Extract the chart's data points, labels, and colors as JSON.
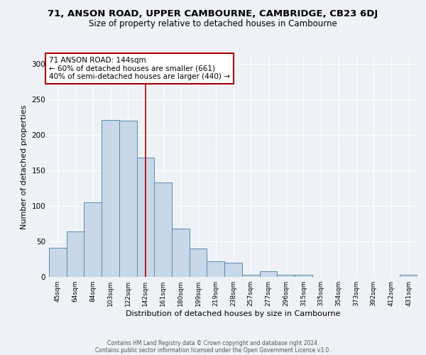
{
  "title1": "71, ANSON ROAD, UPPER CAMBOURNE, CAMBRIDGE, CB23 6DJ",
  "title2": "Size of property relative to detached houses in Cambourne",
  "xlabel": "Distribution of detached houses by size in Cambourne",
  "ylabel": "Number of detached properties",
  "categories": [
    "45sqm",
    "64sqm",
    "84sqm",
    "103sqm",
    "122sqm",
    "142sqm",
    "161sqm",
    "180sqm",
    "199sqm",
    "219sqm",
    "238sqm",
    "257sqm",
    "277sqm",
    "296sqm",
    "315sqm",
    "335sqm",
    "354sqm",
    "373sqm",
    "392sqm",
    "412sqm",
    "431sqm"
  ],
  "values": [
    41,
    64,
    105,
    221,
    220,
    168,
    133,
    68,
    40,
    22,
    20,
    3,
    8,
    3,
    3,
    0,
    0,
    0,
    0,
    0,
    3
  ],
  "bar_color": "#c8d8e8",
  "bar_edge_color": "#5a8ab0",
  "vline_x": 5.0,
  "vline_color": "#aa0000",
  "annotation_text": "71 ANSON ROAD: 144sqm\n← 60% of detached houses are smaller (661)\n40% of semi-detached houses are larger (440) →",
  "annotation_box_facecolor": "#ffffff",
  "annotation_box_edgecolor": "#aa0000",
  "footer1": "Contains HM Land Registry data © Crown copyright and database right 2024.",
  "footer2": "Contains public sector information licensed under the Open Government Licence v3.0.",
  "ylim": [
    0,
    310
  ],
  "background_color": "#eef2f7",
  "plot_background": "#eef2f7",
  "grid_color": "#ffffff",
  "title1_fontsize": 9.5,
  "title2_fontsize": 8.5
}
